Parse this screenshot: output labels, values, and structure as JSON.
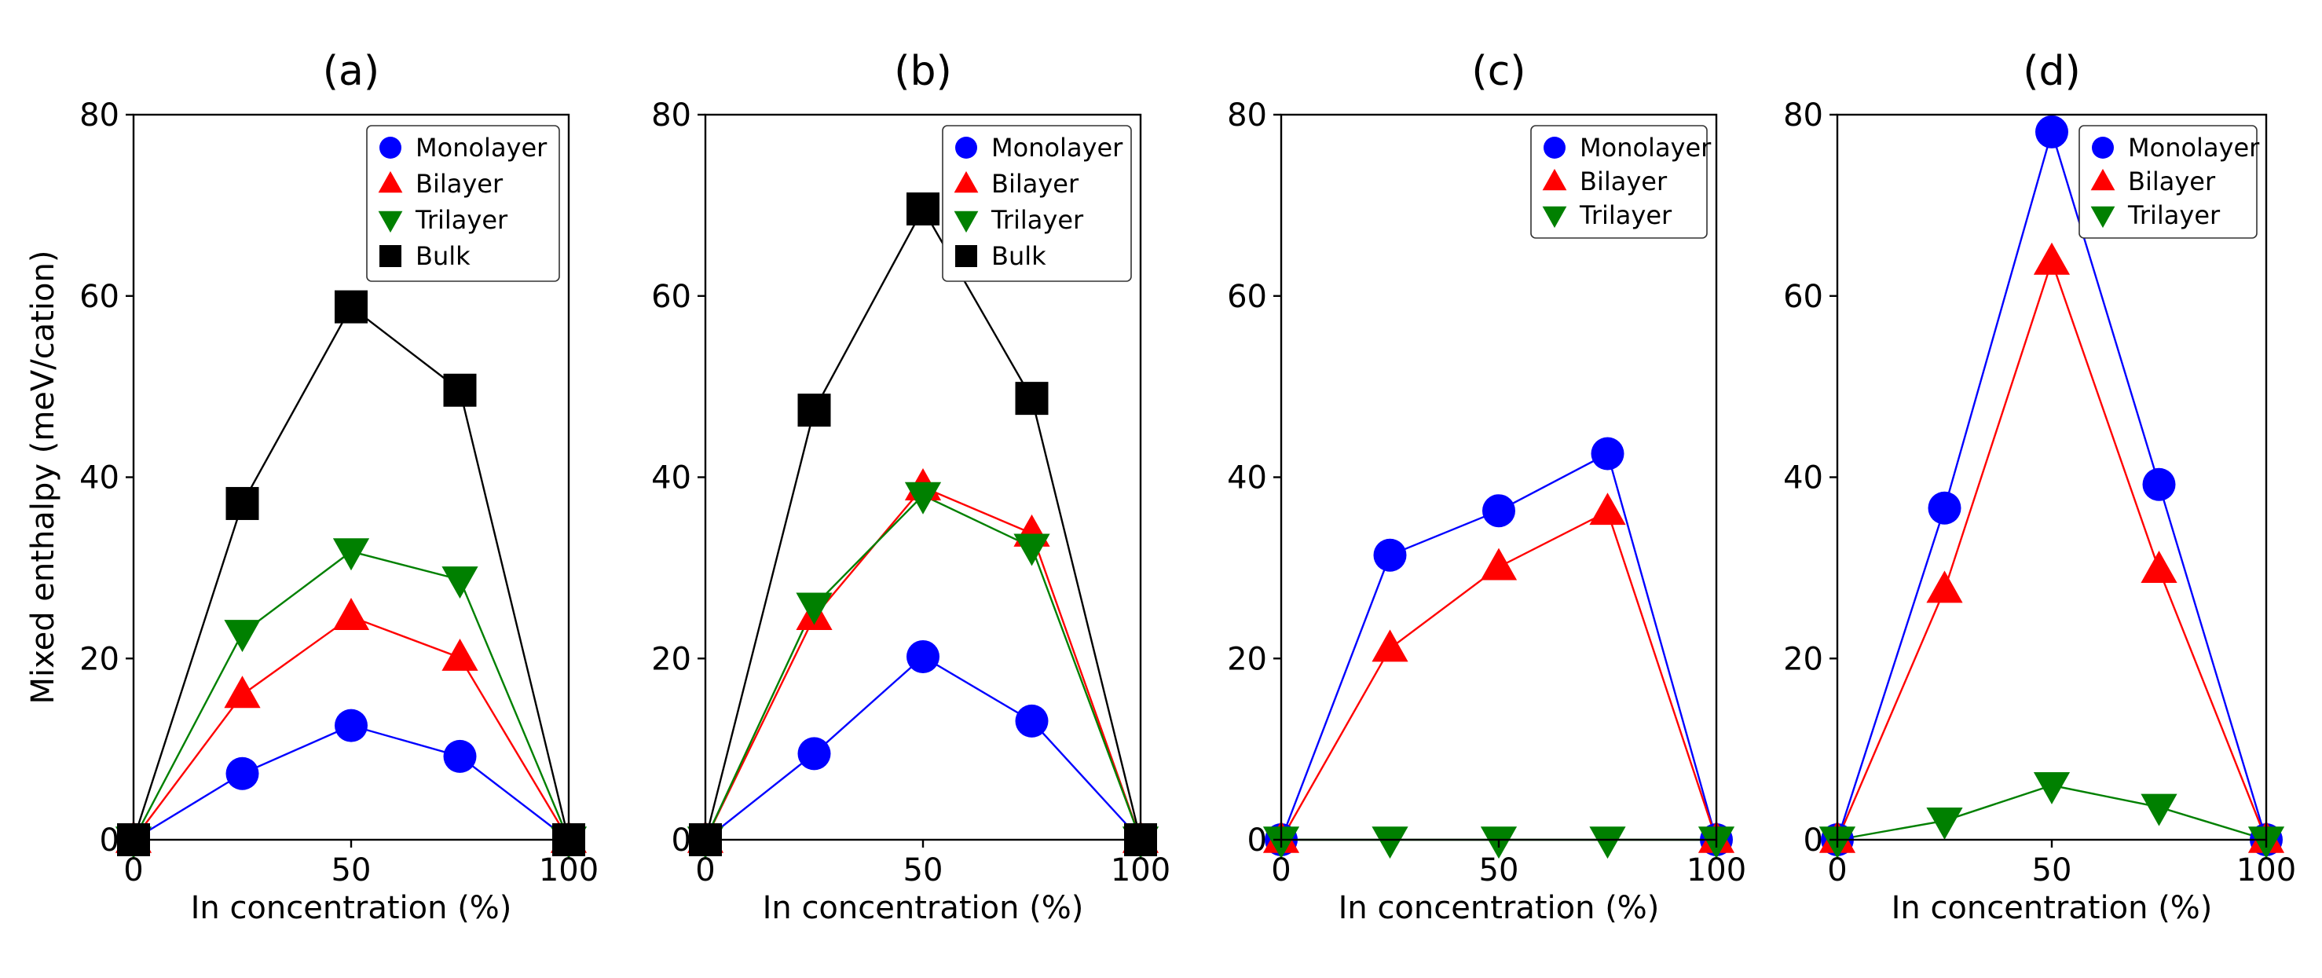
{
  "figure": {
    "ylabel_shared": "Mixed enthalpy (meV/cation)"
  },
  "series_style": {
    "Monolayer": {
      "color": "#0000ff",
      "marker": "circle"
    },
    "Bilayer": {
      "color": "#ff0000",
      "marker": "triangle-up"
    },
    "Trilayer": {
      "color": "#008000",
      "marker": "triangle-down"
    },
    "Bulk": {
      "color": "#000000",
      "marker": "square"
    }
  },
  "chart_data": [
    {
      "type": "line",
      "title": "(a)",
      "xlabel": "In concentration (%)",
      "ylabel": "Mixed enthalpy (meV/cation)",
      "xlim": [
        0,
        100
      ],
      "ylim": [
        0,
        80
      ],
      "xticks": [
        "0",
        "50",
        "100"
      ],
      "yticks": [
        "0",
        "20",
        "40",
        "60",
        "80"
      ],
      "legend_position": "top-right",
      "x": [
        0,
        25,
        50,
        75,
        100
      ],
      "series": [
        {
          "name": "Monolayer",
          "values": [
            0,
            7.3,
            12.6,
            9.2,
            0
          ]
        },
        {
          "name": "Bilayer",
          "values": [
            0,
            16.0,
            24.6,
            20.1,
            0
          ]
        },
        {
          "name": "Trilayer",
          "values": [
            0,
            22.8,
            31.8,
            28.7,
            0
          ]
        },
        {
          "name": "Bulk",
          "values": [
            0,
            37.1,
            58.8,
            49.6,
            0
          ]
        }
      ]
    },
    {
      "type": "line",
      "title": "(b)",
      "xlabel": "In concentration (%)",
      "ylabel": "",
      "xlim": [
        0,
        100
      ],
      "ylim": [
        0,
        80
      ],
      "xticks": [
        "0",
        "50",
        "100"
      ],
      "yticks": [
        "0",
        "20",
        "40",
        "60",
        "80"
      ],
      "legend_position": "top-right",
      "x": [
        0,
        25,
        50,
        75,
        100
      ],
      "series": [
        {
          "name": "Monolayer",
          "values": [
            0,
            9.5,
            20.2,
            13.1,
            0
          ]
        },
        {
          "name": "Bilayer",
          "values": [
            0,
            24.6,
            38.9,
            33.8,
            0
          ]
        },
        {
          "name": "Trilayer",
          "values": [
            0,
            25.8,
            38.0,
            32.3,
            0
          ]
        },
        {
          "name": "Bulk",
          "values": [
            0,
            47.4,
            69.6,
            48.7,
            0
          ]
        }
      ]
    },
    {
      "type": "line",
      "title": "(c)",
      "xlabel": "In concentration (%)",
      "ylabel": "",
      "xlim": [
        0,
        100
      ],
      "ylim": [
        0,
        80
      ],
      "xticks": [
        "0",
        "50",
        "100"
      ],
      "yticks": [
        "0",
        "20",
        "40",
        "60",
        "80"
      ],
      "legend_position": "top-right",
      "x": [
        0,
        25,
        50,
        75,
        100
      ],
      "series": [
        {
          "name": "Monolayer",
          "values": [
            0,
            31.4,
            36.3,
            42.6,
            0
          ]
        },
        {
          "name": "Bilayer",
          "values": [
            0,
            21.1,
            30.1,
            36.2,
            0
          ]
        },
        {
          "name": "Trilayer",
          "values": [
            0,
            0,
            0,
            0,
            0
          ]
        }
      ]
    },
    {
      "type": "line",
      "title": "(d)",
      "xlabel": "In concentration (%)",
      "ylabel": "",
      "xlim": [
        0,
        100
      ],
      "ylim": [
        0,
        80
      ],
      "xticks": [
        "0",
        "50",
        "100"
      ],
      "yticks": [
        "0",
        "20",
        "40",
        "60",
        "80"
      ],
      "legend_position": "top-right",
      "x": [
        0,
        25,
        50,
        75,
        100
      ],
      "series": [
        {
          "name": "Monolayer",
          "values": [
            0,
            36.6,
            78.1,
            39.2,
            0
          ]
        },
        {
          "name": "Bilayer",
          "values": [
            0,
            27.6,
            63.8,
            29.8,
            0
          ]
        },
        {
          "name": "Trilayer",
          "values": [
            0,
            2.1,
            6.0,
            3.6,
            0
          ]
        }
      ]
    }
  ]
}
